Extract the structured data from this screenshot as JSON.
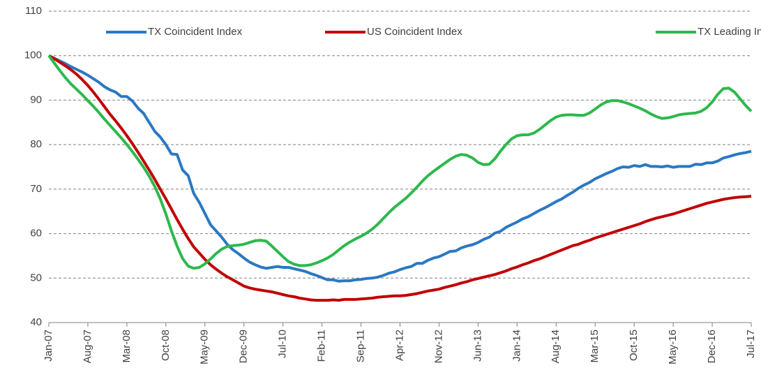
{
  "chart_data": {
    "type": "line",
    "categories": [
      "Jan-07",
      null,
      null,
      null,
      null,
      null,
      null,
      "Aug-07",
      null,
      null,
      null,
      null,
      null,
      null,
      "Mar-08",
      null,
      null,
      null,
      null,
      null,
      null,
      "Oct-08",
      null,
      null,
      null,
      null,
      null,
      null,
      "May-09",
      null,
      null,
      null,
      null,
      null,
      null,
      "Dec-09",
      null,
      null,
      null,
      null,
      null,
      null,
      "Jul-10",
      null,
      null,
      null,
      null,
      null,
      null,
      "Feb-11",
      null,
      null,
      null,
      null,
      null,
      null,
      "Sep-11",
      null,
      null,
      null,
      null,
      null,
      null,
      "Apr-12",
      null,
      null,
      null,
      null,
      null,
      null,
      "Nov-12",
      null,
      null,
      null,
      null,
      null,
      null,
      "Jun-13",
      null,
      null,
      null,
      null,
      null,
      null,
      "Jan-14",
      null,
      null,
      null,
      null,
      null,
      null,
      "Aug-14",
      null,
      null,
      null,
      null,
      null,
      null,
      "Mar-15",
      null,
      null,
      null,
      null,
      null,
      null,
      "Oct-15",
      null,
      null,
      null,
      null,
      null,
      null,
      "May-16",
      null,
      null,
      null,
      null,
      null,
      null,
      "Dec-16",
      null,
      null,
      null,
      null,
      null,
      null,
      "Jul-17"
    ],
    "series": [
      {
        "name": "TX Coincident Index",
        "color": "#2a78c2",
        "values": [
          100,
          99.4,
          98.8,
          98.2,
          97.5,
          96.9,
          96.3,
          95.6,
          94.8,
          94,
          93,
          92.3,
          91.8,
          90.8,
          90.8,
          89.8,
          88.2,
          87,
          85,
          83,
          81.7,
          80,
          77.9,
          77.8,
          74.3,
          73,
          69,
          67,
          64.5,
          62,
          60.6,
          59.2,
          57.6,
          56.4,
          55.5,
          54.5,
          53.6,
          53,
          52.5,
          52.2,
          52.4,
          52.6,
          52.4,
          52.4,
          52.1,
          51.8,
          51.5,
          51,
          50.6,
          50.1,
          49.6,
          49.6,
          49.3,
          49.4,
          49.4,
          49.6,
          49.7,
          49.9,
          50,
          50.2,
          50.6,
          51.1,
          51.4,
          51.9,
          52.3,
          52.6,
          53.3,
          53.3,
          54,
          54.5,
          54.8,
          55.4,
          56,
          56.1,
          56.8,
          57.2,
          57.5,
          58,
          58.7,
          59.2,
          60.1,
          60.5,
          61.4,
          62,
          62.6,
          63.3,
          63.8,
          64.5,
          65.2,
          65.8,
          66.5,
          67.2,
          67.8,
          68.6,
          69.3,
          70.2,
          70.9,
          71.5,
          72.3,
          72.9,
          73.5,
          74,
          74.6,
          75,
          74.9,
          75.3,
          75.1,
          75.5,
          75.1,
          75.1,
          75,
          75.2,
          74.9,
          75.1,
          75.1,
          75.1,
          75.6,
          75.5,
          75.9,
          75.9,
          76.3,
          77,
          77.3,
          77.7,
          78,
          78.2,
          78.5
        ]
      },
      {
        "name": "US Coincident Index",
        "color": "#c00000",
        "values": [
          100,
          99.3,
          98.5,
          97.7,
          96.8,
          95.8,
          94.6,
          93.3,
          91.8,
          90.2,
          88.5,
          86.8,
          85.3,
          83.7,
          82,
          80.2,
          78.3,
          76.3,
          74.3,
          72.2,
          70,
          67.8,
          65.5,
          63.2,
          61,
          58.9,
          57,
          55.6,
          54.2,
          53,
          52,
          51.1,
          50.3,
          49.6,
          48.9,
          48.2,
          47.8,
          47.5,
          47.3,
          47.1,
          46.9,
          46.6,
          46.3,
          46,
          45.8,
          45.5,
          45.3,
          45.1,
          45,
          45,
          45,
          45.1,
          45,
          45.2,
          45.2,
          45.2,
          45.3,
          45.4,
          45.5,
          45.7,
          45.8,
          45.9,
          46,
          46,
          46.1,
          46.3,
          46.5,
          46.8,
          47.1,
          47.3,
          47.5,
          47.9,
          48.2,
          48.5,
          48.9,
          49.2,
          49.6,
          49.9,
          50.2,
          50.5,
          50.8,
          51.2,
          51.6,
          52.1,
          52.5,
          53,
          53.4,
          53.9,
          54.3,
          54.8,
          55.3,
          55.8,
          56.3,
          56.8,
          57.3,
          57.6,
          58.1,
          58.5,
          59,
          59.4,
          59.8,
          60.2,
          60.6,
          61,
          61.4,
          61.8,
          62.2,
          62.7,
          63.1,
          63.5,
          63.8,
          64.1,
          64.4,
          64.8,
          65.2,
          65.6,
          66,
          66.4,
          66.8,
          67.1,
          67.4,
          67.7,
          67.9,
          68.1,
          68.2,
          68.3,
          68.4
        ]
      },
      {
        "name": "TX Leading Index",
        "color": "#2db84d",
        "values": [
          100,
          98.3,
          96.6,
          95,
          93.6,
          92.4,
          91.2,
          89.9,
          88.6,
          87.2,
          85.7,
          84.3,
          82.9,
          81.5,
          80,
          78.4,
          76.7,
          74.9,
          72.9,
          70.6,
          67.8,
          64.4,
          60.6,
          57.2,
          54.4,
          52.7,
          52.2,
          52.4,
          53.2,
          54.3,
          55.5,
          56.5,
          57.1,
          57.3,
          57.4,
          57.6,
          58,
          58.4,
          58.5,
          58.3,
          57.2,
          56,
          54.8,
          53.7,
          53.1,
          52.8,
          52.8,
          53,
          53.4,
          53.9,
          54.5,
          55.3,
          56.3,
          57.3,
          58.1,
          58.8,
          59.4,
          60.1,
          61,
          62.1,
          63.4,
          64.7,
          65.9,
          66.9,
          67.9,
          69.1,
          70.4,
          71.8,
          73,
          74,
          74.9,
          75.8,
          76.7,
          77.4,
          77.8,
          77.6,
          77,
          76,
          75.5,
          75.6,
          76.8,
          78.5,
          80,
          81.3,
          82,
          82.2,
          82.2,
          82.6,
          83.4,
          84.4,
          85.4,
          86.2,
          86.6,
          86.7,
          86.7,
          86.6,
          86.6,
          87.1,
          88,
          88.9,
          89.6,
          89.9,
          89.9,
          89.6,
          89.2,
          88.7,
          88.2,
          87.6,
          86.9,
          86.3,
          85.9,
          86,
          86.3,
          86.7,
          86.9,
          87,
          87.1,
          87.5,
          88.3,
          89.6,
          91.3,
          92.6,
          92.7,
          91.8,
          90.3,
          88.8,
          87.5
        ]
      }
    ],
    "ylim": [
      40,
      110
    ],
    "yticks": [
      40,
      50,
      60,
      70,
      80,
      90,
      100,
      110
    ],
    "grid": true,
    "legend": "top"
  }
}
